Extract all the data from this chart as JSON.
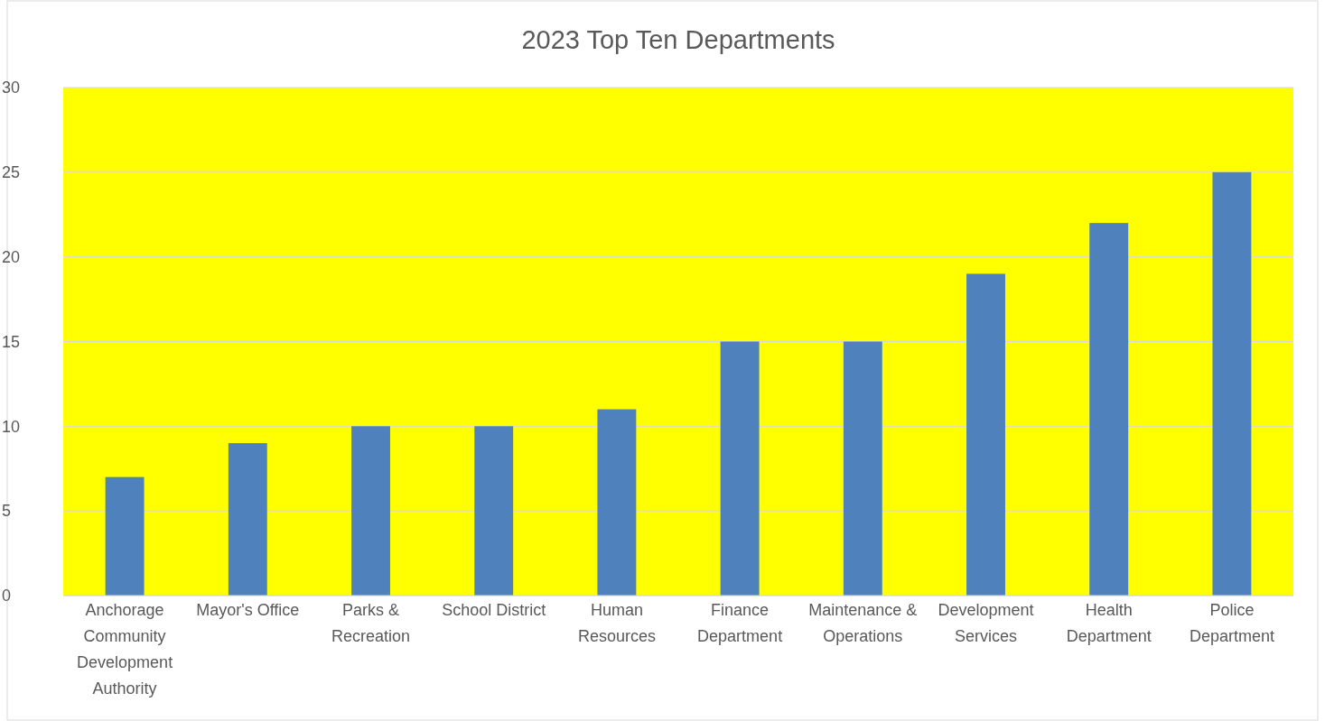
{
  "chart_data": {
    "type": "bar",
    "title": "2023 Top Ten Departments",
    "categories": [
      "Anchorage Community Development Authority",
      "Mayor's Office",
      "Parks & Recreation",
      "School District",
      "Human Resources",
      "Finance Department",
      "Maintenance & Operations",
      "Development Services",
      "Health Department",
      "Police Department"
    ],
    "values": [
      7,
      9,
      10,
      10,
      11,
      15,
      15,
      19,
      22,
      25
    ],
    "color": "#4f81bd",
    "ylim": [
      0,
      30
    ],
    "yticks": [
      0,
      5,
      10,
      15,
      20,
      25,
      30
    ],
    "grid": true
  }
}
